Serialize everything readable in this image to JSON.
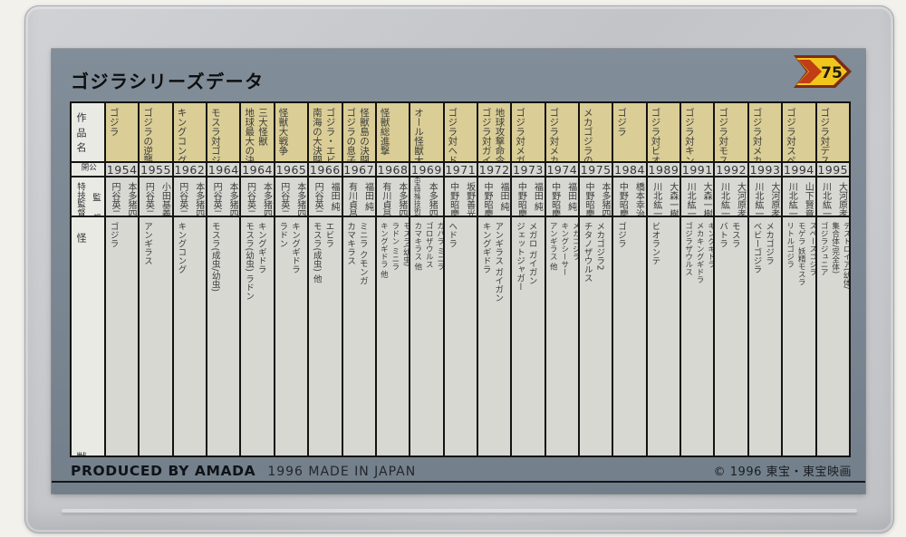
{
  "card": {
    "title": "ゴジラシリーズデータ",
    "badge_number": "75",
    "row_headers": {
      "work_title": "作品名",
      "release": "公開",
      "director": "監督",
      "sfx_director": "特技監督",
      "kaiju": "怪獣"
    },
    "movies": [
      {
        "title_lines": [
          "ゴジラ"
        ],
        "year": "1954",
        "director": [
          "本多",
          "猪四郎"
        ],
        "sfx": [
          "円谷",
          "英二"
        ],
        "monster_lines": [
          "ゴジラ"
        ]
      },
      {
        "title_lines": [
          "ゴジラの逆襲"
        ],
        "year": "1955",
        "director": [
          "小田",
          "基義"
        ],
        "sfx": [
          "円谷",
          "英二"
        ],
        "monster_lines": [
          "アンギラス"
        ]
      },
      {
        "title_lines": [
          "キングコング対ゴジラ"
        ],
        "year": "1962",
        "director": [
          "本多",
          "猪四郎"
        ],
        "sfx": [
          "円谷",
          "英二"
        ],
        "monster_lines": [
          "キングコング"
        ]
      },
      {
        "title_lines": [
          "モスラ対ゴジラ"
        ],
        "year": "1964",
        "director": [
          "本多",
          "猪四郎"
        ],
        "sfx": [
          "円谷",
          "英二"
        ],
        "monster_lines": [
          "モスラ(成虫/幼虫)"
        ]
      },
      {
        "title_lines": [
          "三大怪獣",
          "地球最大の決戦"
        ],
        "year": "1964",
        "director": [
          "本多",
          "猪四郎"
        ],
        "sfx": [
          "円谷",
          "英二"
        ],
        "monster_lines": [
          "キングギドラ",
          "モスラ(幼虫) ラドン"
        ]
      },
      {
        "title_lines": [
          "怪獣大戦争"
        ],
        "year": "1965",
        "director": [
          "本多",
          "猪四郎"
        ],
        "sfx": [
          "円谷",
          "英二"
        ],
        "monster_lines": [
          "キングギドラ",
          "ラドン"
        ]
      },
      {
        "title_lines": [
          "ゴジラ・エビラ・モスラ",
          "南海の大決闘"
        ],
        "year": "1966",
        "director": [
          "福田",
          "純"
        ],
        "sfx": [
          "円谷",
          "英二"
        ],
        "monster_lines": [
          "エビラ",
          "モスラ(成虫) 他"
        ]
      },
      {
        "title_lines": [
          "怪獣島の決闘",
          "ゴジラの息子"
        ],
        "year": "1967",
        "director": [
          "福田",
          "純"
        ],
        "sfx": [
          "有川",
          "貞昌"
        ],
        "monster_lines": [
          "ミニラ クモンガ",
          "カマキラス"
        ]
      },
      {
        "title_lines": [
          "怪獣総進撃"
        ],
        "year": "1968",
        "director": [
          "本多",
          "猪四郎"
        ],
        "sfx": [
          "有川",
          "貞昌"
        ],
        "monster_lines": [
          "モスラ(幼虫)",
          "ラドン ミニラ",
          "キングギドラ 他"
        ]
      },
      {
        "title_lines": [
          "オール怪獣大進撃"
        ],
        "year": "1969",
        "director": [
          "本多",
          "猪四郎"
        ],
        "sfx": [
          "東宝特殊技術部"
        ],
        "monster_lines": [
          "ガバラ ミニラ",
          "ゴロザウルス",
          "カマキラス 他"
        ]
      },
      {
        "title_lines": [
          "ゴジラ対ヘドラ"
        ],
        "year": "1971",
        "director": [
          "坂野",
          "善光"
        ],
        "sfx": [
          "中野",
          "昭慶"
        ],
        "monster_lines": [
          "ヘドラ"
        ]
      },
      {
        "title_lines": [
          "地球攻撃命令",
          "ゴジラ対ガイガン"
        ],
        "year": "1972",
        "director": [
          "福田",
          "純"
        ],
        "sfx": [
          "中野",
          "昭慶"
        ],
        "monster_lines": [
          "アンギラス ガイガン",
          "キングギドラ"
        ]
      },
      {
        "title_lines": [
          "ゴジラ対メガロ"
        ],
        "year": "1973",
        "director": [
          "福田",
          "純"
        ],
        "sfx": [
          "中野",
          "昭慶"
        ],
        "monster_lines": [
          "メガロ ガイガン",
          "ジェットジャガー"
        ]
      },
      {
        "title_lines": [
          "ゴジラ対メカゴジラ"
        ],
        "year": "1974",
        "director": [
          "福田",
          "純"
        ],
        "sfx": [
          "中野",
          "昭慶"
        ],
        "monster_lines": [
          "メカゴジラ",
          "キングシーサー",
          "アンギラス 他"
        ]
      },
      {
        "title_lines": [
          "メカゴジラの逆襲"
        ],
        "year": "1975",
        "director": [
          "本多",
          "猪四郎"
        ],
        "sfx": [
          "中野",
          "昭慶"
        ],
        "monster_lines": [
          "メカゴジラ2",
          "チタノザウルス"
        ]
      },
      {
        "title_lines": [
          "ゴジラ"
        ],
        "year": "1984",
        "director": [
          "橋本",
          "幸治"
        ],
        "sfx": [
          "中野",
          "昭慶"
        ],
        "monster_lines": [
          "ゴジラ"
        ]
      },
      {
        "title_lines": [
          "ゴジラ対ビオランテ"
        ],
        "year": "1989",
        "director": [
          "大森",
          "一樹"
        ],
        "sfx": [
          "川北",
          "紘一"
        ],
        "monster_lines": [
          "ビオランテ"
        ]
      },
      {
        "title_lines": [
          "ゴジラ対キングギドラ"
        ],
        "year": "1991",
        "director": [
          "大森",
          "一樹"
        ],
        "sfx": [
          "川北",
          "紘一"
        ],
        "monster_lines": [
          "キングギドラ",
          "メカキングギドラ",
          "ゴジラザウルス"
        ]
      },
      {
        "title_lines": [
          "ゴジラ対モスラ"
        ],
        "year": "1992",
        "director": [
          "大河原",
          "孝夫"
        ],
        "sfx": [
          "川北",
          "紘一"
        ],
        "monster_lines": [
          "モスラ",
          "バトラ"
        ]
      },
      {
        "title_lines": [
          "ゴジラ対メカゴジラ"
        ],
        "year": "1993",
        "director": [
          "大河原",
          "孝夫"
        ],
        "sfx": [
          "川北",
          "紘一"
        ],
        "monster_lines": [
          "メカゴジラ",
          "ベビーゴジラ"
        ]
      },
      {
        "title_lines": [
          "ゴジラ対スペースゴジラ"
        ],
        "year": "1994",
        "director": [
          "山下",
          "賢章"
        ],
        "sfx": [
          "川北",
          "紘一"
        ],
        "monster_lines": [
          "スペースゴジラ",
          "モゲラ 妖精モスラ",
          "リトルゴジラ"
        ]
      },
      {
        "title_lines": [
          "ゴジラ対デストロイア"
        ],
        "year": "1995",
        "director": [
          "大河原",
          "孝夫"
        ],
        "sfx": [
          "川北",
          "紘一"
        ],
        "monster_lines": [
          "デストロイア(幼体/",
          "集合体/完全体)",
          "ゴジラジュニア"
        ]
      }
    ],
    "footer": {
      "left_bold": "PRODUCED BY AMADA",
      "left_regular": "1996 MADE IN JAPAN",
      "right": "© 1996 東宝・東宝映画"
    },
    "colors": {
      "card_bg": "#7b8792",
      "title_cell_bg": "#dacd96",
      "cell_bg": "#d8d8d3",
      "header_cell_bg": "#eaeae5",
      "badge_yellow": "#f2c51d",
      "badge_red": "#b5411a",
      "badge_outline": "#7e2c10"
    }
  }
}
